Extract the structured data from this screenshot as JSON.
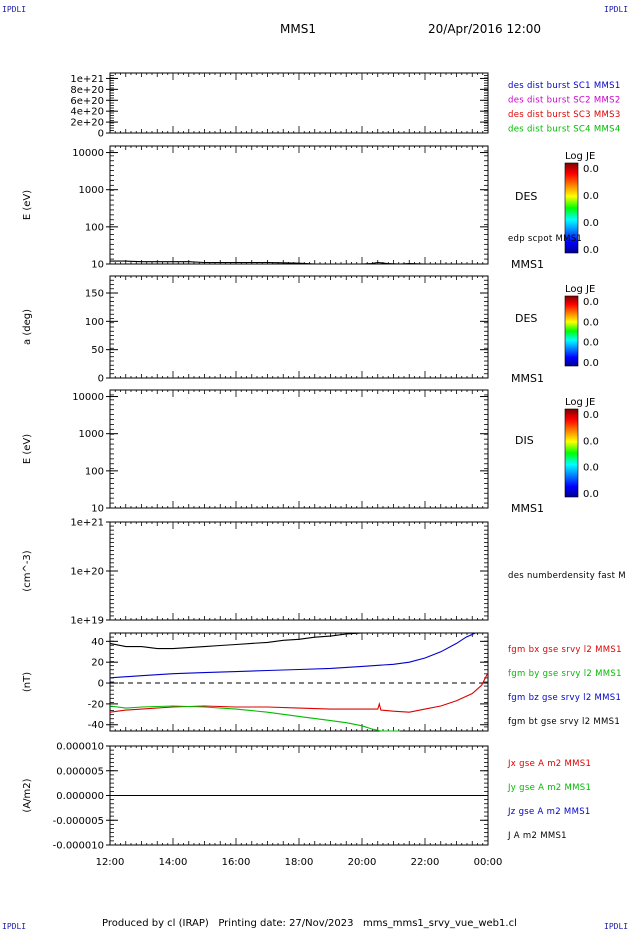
{
  "corner_labels": {
    "top_left": "IPDLI",
    "top_right": "IPDLI",
    "bottom_left": "IPDLI",
    "bottom_right": "IPDLI"
  },
  "header": {
    "spacecraft": "MMS1",
    "datetime": "20/Apr/2016 12:00"
  },
  "footer": "Produced by cl (IRAP)   Printing date: 27/Nov/2023   mms_mms1_srvy_vue_web1.cl",
  "x_axis": {
    "ticks": [
      "12:00",
      "14:00",
      "16:00",
      "18:00",
      "20:00",
      "22:00",
      "00:00"
    ],
    "range_hours": [
      12,
      24
    ]
  },
  "colors": {
    "black": "#000000",
    "blue": "#0000cc",
    "magenta": "#cc00cc",
    "red": "#dd0000",
    "green": "#00bb00"
  },
  "chart_data": [
    {
      "type": "line",
      "panel": "des dist burst",
      "ylabel": "",
      "yticks": [
        "1e+21",
        "8e+20",
        "6e+20",
        "4e+20",
        "2e+20",
        "0"
      ],
      "ylim": [
        0,
        1.1e+21
      ],
      "dashed_zero": true,
      "legend": [
        {
          "text": "des dist burst SC1 MMS1",
          "color": "#0000cc"
        },
        {
          "text": "des dist burst SC2 MMS2",
          "color": "#cc00cc"
        },
        {
          "text": "des dist burst SC3 MMS3",
          "color": "#dd0000"
        },
        {
          "text": "des dist burst SC4 MMS4",
          "color": "#00bb00"
        }
      ],
      "series": []
    },
    {
      "type": "line",
      "panel": "DES energy",
      "ylabel": "E (eV)",
      "yscale": "log",
      "yticks": [
        "10000",
        "1000",
        "100",
        "10"
      ],
      "ylim": [
        10,
        15000
      ],
      "side_label": "DES",
      "probe_label": "MMS1",
      "legend": [
        {
          "text": "edp scpot MMS1",
          "color": "#000000"
        }
      ],
      "colorbar": {
        "title": "Log JE",
        "ticks": [
          "0.0",
          "0.0",
          "0.0",
          "0.0"
        ]
      },
      "series": [
        {
          "color": "#000000",
          "x": [
            12.0,
            12.5,
            13.0,
            13.5,
            14.0,
            14.5,
            15.0,
            15.5,
            16.0,
            16.5,
            17.0,
            17.5,
            18.0,
            18.5,
            19.0,
            19.5,
            20.0,
            20.3,
            20.5,
            20.8,
            21.2,
            21.5,
            22.0
          ],
          "y": [
            12,
            12,
            11.5,
            11.5,
            11.5,
            11.5,
            11,
            11,
            11,
            11,
            11,
            10.8,
            10.5,
            10,
            10,
            10,
            10,
            10.3,
            11,
            10.3,
            10,
            10.3,
            10
          ]
        }
      ]
    },
    {
      "type": "heatmap",
      "panel": "DES pitch angle",
      "ylabel": "a (deg)",
      "yticks": [
        "150",
        "100",
        "50",
        "0"
      ],
      "ylim": [
        0,
        180
      ],
      "side_label": "DES",
      "probe_label": "MMS1",
      "colorbar": {
        "title": "Log JE",
        "ticks": [
          "0.0",
          "0.0",
          "0.0",
          "0.0"
        ]
      }
    },
    {
      "type": "heatmap",
      "panel": "DIS energy",
      "ylabel": "E (eV)",
      "yscale": "log",
      "yticks": [
        "10000",
        "1000",
        "100",
        "10"
      ],
      "ylim": [
        10,
        15000
      ],
      "side_label": "DIS",
      "probe_label": "MMS1",
      "colorbar": {
        "title": "Log JE",
        "ticks": [
          "0.0",
          "0.0",
          "0.0",
          "0.0"
        ]
      }
    },
    {
      "type": "line",
      "panel": "density",
      "ylabel": "(cm^-3)",
      "yscale": "log",
      "yticks": [
        "1e+21",
        "1e+20",
        "1e+19"
      ],
      "ylim": [
        1e+19,
        1e+21
      ],
      "legend": [
        {
          "text": "des numberdensity fast M",
          "color": "#000000"
        }
      ],
      "series": []
    },
    {
      "type": "line",
      "panel": "fgm",
      "ylabel": "(nT)",
      "yticks": [
        "40",
        "20",
        "0",
        "-20",
        "-40"
      ],
      "ylim": [
        -46,
        48
      ],
      "dashed_zero": true,
      "legend": [
        {
          "text": "fgm bx gse srvy l2 MMS1",
          "color": "#dd0000"
        },
        {
          "text": "fgm by gse srvy l2 MMS1",
          "color": "#00bb00"
        },
        {
          "text": "fgm bz gse srvy l2 MMS1",
          "color": "#0000cc"
        },
        {
          "text": "fgm bt gse srvy l2 MMS1",
          "color": "#000000"
        }
      ],
      "series": [
        {
          "name": "fgm bt gse srvy l2 MMS1",
          "color": "#000000",
          "x": [
            12.0,
            12.5,
            13.0,
            13.5,
            14.0,
            14.5,
            15.0,
            15.5,
            16.0,
            16.5,
            17.0,
            17.5,
            18.0,
            18.5,
            19.0,
            19.5,
            20.0,
            20.1
          ],
          "y": [
            38,
            35,
            35,
            33,
            33,
            34,
            35,
            36,
            37,
            38,
            39,
            41,
            42,
            44,
            45,
            47,
            48,
            49
          ]
        },
        {
          "name": "fgm bz gse srvy l2 MMS1",
          "color": "#0000cc",
          "x": [
            12.0,
            13.0,
            14.0,
            15.0,
            16.0,
            17.0,
            18.0,
            19.0,
            20.0,
            21.0,
            21.5,
            22.0,
            22.5,
            23.0,
            23.3,
            23.6
          ],
          "y": [
            5,
            7,
            9,
            10,
            11,
            12,
            13,
            14,
            16,
            18,
            20,
            24,
            30,
            38,
            44,
            49
          ]
        },
        {
          "name": "fgm bx gse srvy l2 MMS1",
          "color": "#dd0000",
          "x": [
            12.0,
            12.5,
            13.0,
            14.0,
            15.0,
            16.0,
            17.0,
            18.0,
            19.0,
            20.0,
            20.5,
            20.55,
            20.6,
            21.0,
            21.5,
            22.0,
            22.5,
            23.0,
            23.5,
            23.8,
            24.0
          ],
          "y": [
            -28,
            -26,
            -25,
            -23,
            -22,
            -23,
            -23,
            -24,
            -25,
            -25,
            -25,
            -20,
            -26,
            -27,
            -28,
            -25,
            -22,
            -17,
            -10,
            -2,
            10
          ]
        },
        {
          "name": "fgm by gse srvy l2 MMS1",
          "color": "#00bb00",
          "x": [
            12.0,
            12.5,
            13.0,
            14.0,
            15.0,
            16.0,
            17.0,
            18.0,
            19.0,
            19.5,
            20.0,
            20.3,
            20.6,
            21.0,
            21.2
          ],
          "y": [
            -22,
            -24,
            -23,
            -22,
            -23,
            -25,
            -28,
            -32,
            -36,
            -38,
            -41,
            -44,
            -46,
            -48,
            -50
          ]
        }
      ]
    },
    {
      "type": "line",
      "panel": "current density",
      "ylabel": "(A/m2)",
      "yticks": [
        "0.000010",
        "0.000005",
        "0.000000",
        "-0.000005",
        "-0.000010"
      ],
      "ylim": [
        -1e-05,
        1e-05
      ],
      "legend": [
        {
          "text": "Jx gse A m2 MMS1",
          "color": "#dd0000"
        },
        {
          "text": "Jy gse A m2 MMS1",
          "color": "#00bb00"
        },
        {
          "text": "Jz gse A m2 MMS1",
          "color": "#0000cc"
        },
        {
          "text": "J A m2 MMS1",
          "color": "#000000"
        }
      ],
      "series": [
        {
          "name": "J A m2 MMS1",
          "color": "#000000",
          "x": [
            12,
            24
          ],
          "y": [
            0,
            0
          ]
        }
      ]
    }
  ]
}
